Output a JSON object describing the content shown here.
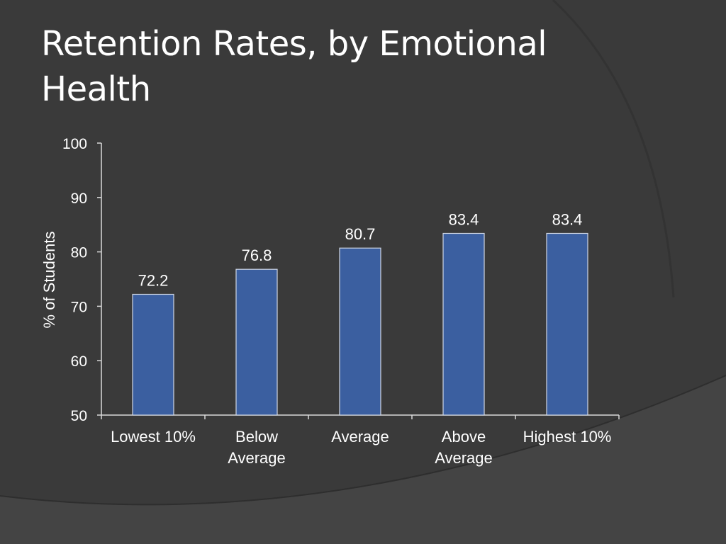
{
  "slide": {
    "title": "Retention Rates, by Emotional Health"
  },
  "colors": {
    "background": "#3a3a3a",
    "bar": "#3b5fa0",
    "text": "#ffffff",
    "axis": "#d9d9d9"
  },
  "chart_data": {
    "type": "bar",
    "categories": [
      "Lowest 10%",
      "Below Average",
      "Average",
      "Above Average",
      "Highest 10%"
    ],
    "values": [
      72.2,
      76.8,
      80.7,
      83.4,
      83.4
    ],
    "title": "",
    "xlabel": "",
    "ylabel": "% of Students",
    "ylim": [
      50,
      100
    ],
    "yticks": [
      50,
      60,
      70,
      80,
      90,
      100
    ],
    "data_labels": [
      "72.2",
      "76.8",
      "80.7",
      "83.4",
      "83.4"
    ],
    "grid": false,
    "legend": "none"
  }
}
